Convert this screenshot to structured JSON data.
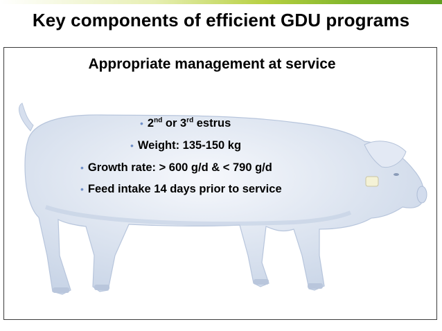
{
  "slide": {
    "title": "Key components of efficient GDU programs",
    "subtitle": "Appropriate management at service",
    "bullets": [
      {
        "pre": "2",
        "sup1": "nd",
        "mid": " or 3",
        "sup2": "rd",
        "post": " estrus"
      },
      {
        "text": "Weight: 135-150 kg"
      },
      {
        "text": "Growth rate: > 600 g/d & < 790 g/d"
      },
      {
        "text": "Feed intake 14 days prior to service"
      }
    ],
    "bullet_glyph": "•",
    "image": "pig-photo",
    "colors": {
      "bullet": "#6f8fc8",
      "pig_tint": "#dfe7f3",
      "accent_green": "#5f9e21"
    }
  }
}
